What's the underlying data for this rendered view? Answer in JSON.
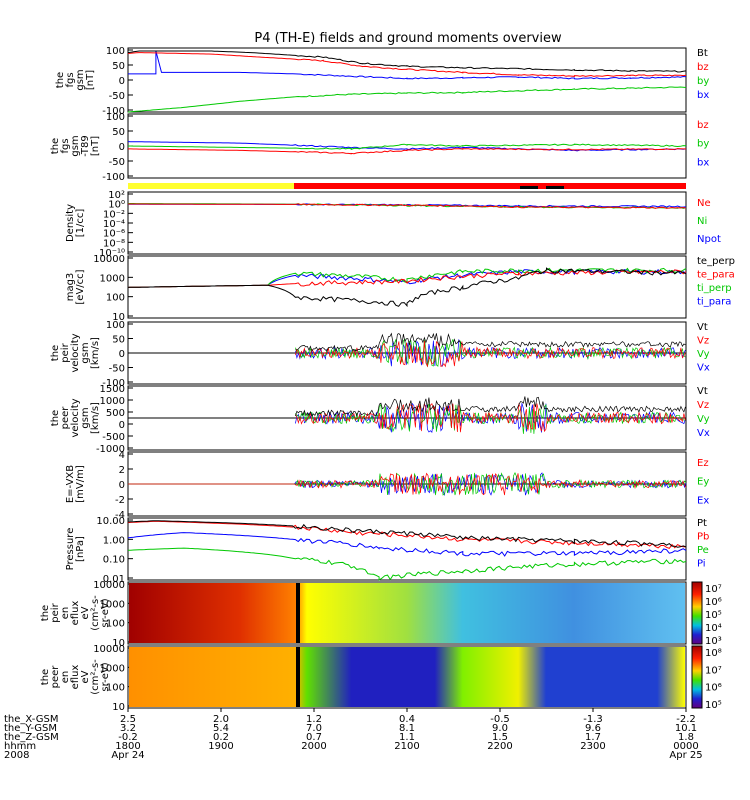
{
  "title": "P4 (TH-E) fields and ground moments overview",
  "chart_data": [
    {
      "type": "line",
      "ylabel": [
        "the",
        "fgs",
        "gsm",
        "[nT]"
      ],
      "yticks": [
        100,
        50,
        0,
        -50,
        -100
      ],
      "ylim": [
        -100,
        110
      ],
      "series": [
        {
          "name": "Bt",
          "color": "#000000",
          "values": [
            [
              0,
              95
            ],
            [
              0.02,
              100
            ],
            [
              0.15,
              100
            ],
            [
              0.22,
              95
            ],
            [
              0.35,
              80
            ],
            [
              0.42,
              60
            ],
            [
              0.5,
              50
            ],
            [
              0.6,
              45
            ],
            [
              0.7,
              42
            ],
            [
              0.8,
              38
            ],
            [
              0.9,
              35
            ],
            [
              1,
              33
            ]
          ]
        },
        {
          "name": "bz",
          "color": "#ff0000",
          "values": [
            [
              0,
              92
            ],
            [
              0.02,
              95
            ],
            [
              0.15,
              90
            ],
            [
              0.22,
              82
            ],
            [
              0.35,
              68
            ],
            [
              0.42,
              50
            ],
            [
              0.5,
              40
            ],
            [
              0.6,
              30
            ],
            [
              0.7,
              22
            ],
            [
              0.8,
              18
            ],
            [
              0.9,
              20
            ],
            [
              1,
              20
            ]
          ]
        },
        {
          "name": "by",
          "color": "#00c800",
          "values": [
            [
              0,
              -100
            ],
            [
              0.1,
              -85
            ],
            [
              0.2,
              -65
            ],
            [
              0.3,
              -50
            ],
            [
              0.4,
              -42
            ],
            [
              0.5,
              -38
            ],
            [
              0.6,
              -36
            ],
            [
              0.7,
              -30
            ],
            [
              0.8,
              -25
            ],
            [
              0.9,
              -22
            ],
            [
              1,
              -18
            ]
          ]
        },
        {
          "name": "bx",
          "color": "#0000ff",
          "values": [
            [
              0,
              25
            ],
            [
              0.05,
              25
            ],
            [
              0.05,
              100
            ],
            [
              0.06,
              30
            ],
            [
              0.2,
              30
            ],
            [
              0.3,
              25
            ],
            [
              0.5,
              10
            ],
            [
              0.6,
              12
            ],
            [
              0.7,
              15
            ],
            [
              0.8,
              10
            ],
            [
              0.9,
              12
            ],
            [
              1,
              15
            ]
          ]
        }
      ]
    },
    {
      "type": "line",
      "ylabel": [
        "the",
        "fgs",
        "gsm",
        "-T89",
        "[nT]"
      ],
      "yticks": [
        100,
        50,
        0,
        -50,
        -100
      ],
      "ylim": [
        -110,
        110
      ],
      "series": [
        {
          "name": "bz",
          "color": "#ff0000",
          "values": [
            [
              0,
              -10
            ],
            [
              0.2,
              -15
            ],
            [
              0.4,
              -25
            ],
            [
              0.5,
              -15
            ],
            [
              0.6,
              -10
            ],
            [
              0.8,
              -12
            ],
            [
              1,
              -10
            ]
          ]
        },
        {
          "name": "by",
          "color": "#00c800",
          "values": [
            [
              0,
              0
            ],
            [
              0.2,
              -5
            ],
            [
              0.4,
              -10
            ],
            [
              0.5,
              5
            ],
            [
              0.6,
              0
            ],
            [
              0.8,
              5
            ],
            [
              1,
              0
            ]
          ]
        },
        {
          "name": "bx",
          "color": "#0000ff",
          "values": [
            [
              0,
              15
            ],
            [
              0.2,
              10
            ],
            [
              0.4,
              -5
            ],
            [
              0.5,
              -10
            ],
            [
              0.6,
              -5
            ],
            [
              0.8,
              -15
            ],
            [
              1,
              -10
            ]
          ]
        }
      ]
    },
    {
      "type": "line",
      "ylabel": [
        "Density",
        "[1/cc]"
      ],
      "yticks": [
        "10²",
        "10⁰",
        "10⁻²",
        "10⁻⁴",
        "10⁻⁶",
        "10⁻⁸",
        "10⁻¹⁰"
      ],
      "log": true,
      "series": [
        {
          "name": "Ne",
          "color": "#ff0000",
          "values": [
            [
              0,
              1.2
            ],
            [
              0.3,
              1.0
            ],
            [
              0.5,
              0.7
            ],
            [
              0.7,
              0.3
            ],
            [
              1,
              0.2
            ]
          ]
        },
        {
          "name": "Ni",
          "color": "#00c800",
          "values": [
            [
              0,
              1.5
            ],
            [
              0.3,
              1.1
            ],
            [
              0.5,
              0.6
            ],
            [
              0.7,
              0.3
            ],
            [
              1,
              0.2
            ]
          ]
        },
        {
          "name": "Npot",
          "color": "#0000ff",
          "values": [
            [
              0,
              1.1
            ],
            [
              0.3,
              1.0
            ],
            [
              0.5,
              0.8
            ],
            [
              0.7,
              0.5
            ],
            [
              1,
              0.4
            ]
          ]
        }
      ]
    },
    {
      "type": "line",
      "ylabel": [
        "mag3",
        "[eV/cc]"
      ],
      "yticks": [
        10000,
        1000,
        100,
        10
      ],
      "log": true,
      "series": [
        {
          "name": "te_perp",
          "color": "#000000",
          "values": [
            [
              0,
              300
            ],
            [
              0.25,
              400
            ],
            [
              0.3,
              80
            ],
            [
              0.5,
              30
            ],
            [
              0.6,
              300
            ],
            [
              0.7,
              1000
            ],
            [
              0.75,
              3000
            ],
            [
              1,
              2000
            ]
          ]
        },
        {
          "name": "te_para",
          "color": "#ff0000",
          "values": [
            [
              0,
              300
            ],
            [
              0.25,
              400
            ],
            [
              0.3,
              500
            ],
            [
              0.5,
              700
            ],
            [
              0.7,
              2000
            ],
            [
              1,
              2500
            ]
          ]
        },
        {
          "name": "ti_perp",
          "color": "#00c800",
          "values": [
            [
              0,
              300
            ],
            [
              0.25,
              400
            ],
            [
              0.3,
              2000
            ],
            [
              0.5,
              800
            ],
            [
              0.6,
              2500
            ],
            [
              0.7,
              3000
            ],
            [
              1,
              3000
            ]
          ]
        },
        {
          "name": "ti_para",
          "color": "#0000ff",
          "values": [
            [
              0,
              300
            ],
            [
              0.25,
              400
            ],
            [
              0.3,
              1500
            ],
            [
              0.5,
              600
            ],
            [
              0.7,
              2500
            ],
            [
              1,
              2500
            ]
          ]
        }
      ]
    },
    {
      "type": "line",
      "ylabel": [
        "the",
        "peir",
        "velocity",
        "gsm",
        "[km/s]"
      ],
      "yticks": [
        100,
        50,
        0,
        -50,
        -100
      ],
      "series": [
        {
          "name": "Vt",
          "color": "#000000"
        },
        {
          "name": "Vz",
          "color": "#ff0000"
        },
        {
          "name": "Vy",
          "color": "#00c800"
        },
        {
          "name": "Vx",
          "color": "#0000ff"
        }
      ]
    },
    {
      "type": "line",
      "ylabel": [
        "the",
        "peer",
        "velocity",
        "gsm",
        "[km/s]"
      ],
      "yticks": [
        1500,
        1000,
        500,
        0,
        -500,
        -1000
      ],
      "series": [
        {
          "name": "Vt",
          "color": "#000000"
        },
        {
          "name": "Vz",
          "color": "#ff0000"
        },
        {
          "name": "Vy",
          "color": "#00c800"
        },
        {
          "name": "Vx",
          "color": "#0000ff"
        }
      ]
    },
    {
      "type": "line",
      "ylabel": [
        "E=-VXB",
        "[mV/m]"
      ],
      "yticks": [
        4,
        2,
        0,
        -2,
        -4
      ],
      "series": [
        {
          "name": "Ez",
          "color": "#ff0000"
        },
        {
          "name": "Ey",
          "color": "#00c800"
        },
        {
          "name": "Ex",
          "color": "#0000ff"
        }
      ]
    },
    {
      "type": "line",
      "ylabel": [
        "Pressure",
        "[nPa]"
      ],
      "yticks": [
        "10.00",
        "1.00",
        "0.10",
        "0.01"
      ],
      "log": true,
      "series": [
        {
          "name": "Pt",
          "color": "#000000",
          "values": [
            [
              0,
              12
            ],
            [
              0.05,
              14
            ],
            [
              0.2,
              10
            ],
            [
              0.4,
              4
            ],
            [
              0.6,
              1.5
            ],
            [
              0.8,
              1.0
            ],
            [
              1,
              0.6
            ]
          ]
        },
        {
          "name": "Pb",
          "color": "#ff0000",
          "values": [
            [
              0,
              11
            ],
            [
              0.05,
              13
            ],
            [
              0.2,
              9
            ],
            [
              0.4,
              3
            ],
            [
              0.6,
              1.2
            ],
            [
              0.8,
              0.8
            ],
            [
              1,
              0.5
            ]
          ]
        },
        {
          "name": "Pe",
          "color": "#00c800",
          "values": [
            [
              0,
              0.3
            ],
            [
              0.1,
              0.4
            ],
            [
              0.3,
              0.1
            ],
            [
              0.45,
              0.008
            ],
            [
              0.6,
              0.02
            ],
            [
              0.8,
              0.05
            ],
            [
              1,
              0.08
            ]
          ]
        },
        {
          "name": "Pi",
          "color": "#0000ff",
          "values": [
            [
              0,
              1.5
            ],
            [
              0.1,
              3
            ],
            [
              0.3,
              1.2
            ],
            [
              0.45,
              0.4
            ],
            [
              0.6,
              0.2
            ],
            [
              0.8,
              0.2
            ],
            [
              1,
              0.3
            ]
          ]
        }
      ]
    },
    {
      "type": "heatmap",
      "ylabel": [
        "the",
        "peir",
        "en",
        "eflux",
        "eV",
        "(cm²-s-",
        "sr-eV)"
      ],
      "yticks": [
        10000,
        1000,
        100,
        10
      ],
      "colorbar_ticks": [
        "10⁷",
        "10⁶",
        "10⁵",
        "10⁴",
        "10³"
      ]
    },
    {
      "type": "heatmap",
      "ylabel": [
        "the",
        "peer",
        "en",
        "eflux",
        "eV",
        "(cm²-s-",
        "sr-eV)"
      ],
      "yticks": [
        10000,
        1000,
        100,
        10
      ],
      "colorbar_ticks": [
        "10⁸",
        "10⁷",
        "10⁶",
        "10⁵"
      ]
    }
  ],
  "xaxis": {
    "row_labels": [
      "the_X-GSM",
      "the_Y-GSM",
      "the_Z-GSM",
      "hhmm",
      "2008"
    ],
    "columns": [
      [
        "2.5",
        "3.2",
        "-0.2",
        "1800",
        "Apr 24"
      ],
      [
        "2.0",
        "5.4",
        "0.2",
        "1900",
        ""
      ],
      [
        "1.2",
        "7.0",
        "0.7",
        "2000",
        ""
      ],
      [
        "0.4",
        "8.1",
        "1.1",
        "2100",
        ""
      ],
      [
        "-0.5",
        "9.0",
        "1.5",
        "2200",
        ""
      ],
      [
        "-1.3",
        "9.6",
        "1.7",
        "2300",
        ""
      ],
      [
        "-2.2",
        "10.1",
        "1.8",
        "0000",
        "Apr 25"
      ]
    ]
  },
  "colors": {
    "red": "#ff0000",
    "green": "#00c800",
    "blue": "#0000ff",
    "black": "#000000",
    "yellow": "#ffff30"
  }
}
